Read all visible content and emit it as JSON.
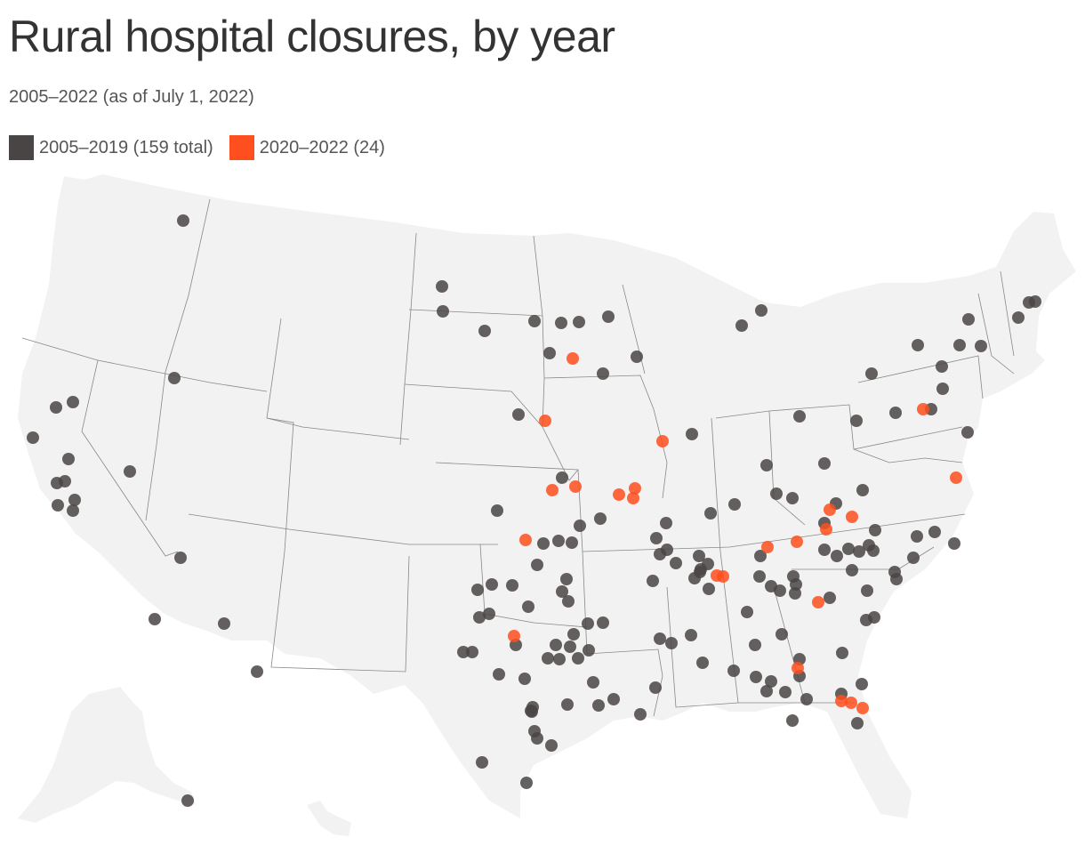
{
  "header": {
    "title": "Rural hospital closures, by year",
    "subtitle": "2005–2022 (as of July 1, 2022)"
  },
  "legend": [
    {
      "label": "2005–2019 (159 total)",
      "color": "#4a4545"
    },
    {
      "label": "2020–2022 (24)",
      "color": "#ff4f1f"
    }
  ],
  "colors": {
    "land": "#f2f2f2",
    "border": "#888888",
    "old_closure": "#4a4545",
    "recent_closure": "#ff4f1f"
  },
  "map": {
    "region": "contiguous United States, Alaska, Hawaii",
    "marker_opacity": 0.85
  }
}
